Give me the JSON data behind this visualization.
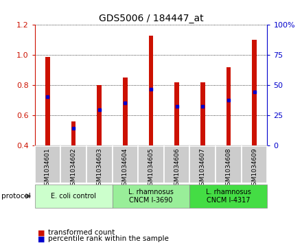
{
  "title": "GDS5006 / 184447_at",
  "samples": [
    "GSM1034601",
    "GSM1034602",
    "GSM1034603",
    "GSM1034604",
    "GSM1034605",
    "GSM1034606",
    "GSM1034607",
    "GSM1034608",
    "GSM1034609"
  ],
  "transformed_count": [
    0.99,
    0.56,
    0.8,
    0.85,
    1.13,
    0.82,
    0.82,
    0.92,
    1.1
  ],
  "percentile_rank": [
    0.725,
    0.515,
    0.64,
    0.685,
    0.775,
    0.66,
    0.66,
    0.7,
    0.755
  ],
  "bar_color": "#cc1100",
  "dot_color": "#0000cc",
  "ylim_left": [
    0.4,
    1.2
  ],
  "ylim_right": [
    0,
    100
  ],
  "yticks_left": [
    0.4,
    0.6,
    0.8,
    1.0,
    1.2
  ],
  "yticks_right": [
    0,
    25,
    50,
    75,
    100
  ],
  "protocols": [
    {
      "label": "E. coli control",
      "start": 0,
      "end": 3,
      "color": "#ccffcc"
    },
    {
      "label": "L. rhamnosus\nCNCM I-3690",
      "start": 3,
      "end": 6,
      "color": "#99ee99"
    },
    {
      "label": "L. rhamnosus\nCNCM I-4317",
      "start": 6,
      "end": 9,
      "color": "#44dd44"
    }
  ],
  "legend_items": [
    {
      "label": "transformed count",
      "color": "#cc1100"
    },
    {
      "label": "percentile rank within the sample",
      "color": "#0000cc"
    }
  ],
  "bar_width": 0.18,
  "left_axis_color": "#cc1100",
  "right_axis_color": "#0000cc",
  "cell_color": "#cccccc",
  "cell_edge_color": "#ffffff"
}
